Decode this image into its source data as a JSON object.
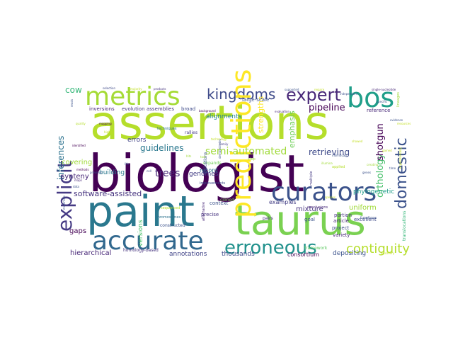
{
  "words": [
    {
      "text": "assertions",
      "color": "#b5de2b"
    },
    {
      "text": "biologist",
      "color": "#440154"
    },
    {
      "text": "paint",
      "color": "#2a788e"
    },
    {
      "text": "taurus",
      "color": "#7ad151"
    },
    {
      "text": "accurate",
      "color": "#31688e"
    },
    {
      "text": "metrics",
      "color": "#a5db36"
    },
    {
      "text": "curators",
      "color": "#3b528b"
    },
    {
      "text": "bos",
      "color": "#1f9e89"
    },
    {
      "text": "expert",
      "color": "#482878"
    },
    {
      "text": "kingdoms",
      "color": "#3e4a89"
    },
    {
      "text": "erroneous",
      "color": "#21918c"
    },
    {
      "text": "explicit",
      "color": "#443983"
    },
    {
      "text": "domestic",
      "color": "#3b528b"
    },
    {
      "text": "contiguity",
      "color": "#b5de2b"
    },
    {
      "text": "predictions",
      "color": "#fde725"
    },
    {
      "text": "semi-automated",
      "color": "#a0da39"
    },
    {
      "text": "software-assisted",
      "color": "#46337f"
    },
    {
      "text": "pipeline",
      "color": "#440154"
    },
    {
      "text": "orthology",
      "color": "#4ac16d"
    },
    {
      "text": "shotgun",
      "color": "#440154"
    },
    {
      "text": "retrieving",
      "color": "#3e4a89"
    },
    {
      "text": "guidelines",
      "color": "#2a788e"
    },
    {
      "text": "trees",
      "color": "#482878"
    },
    {
      "text": "genomes",
      "color": "#433e85"
    },
    {
      "text": "inferences",
      "color": "#2c728e"
    },
    {
      "text": "cow",
      "color": "#35b779"
    },
    {
      "text": "strengths",
      "color": "#fde725"
    },
    {
      "text": "emphasis",
      "color": "#6ece58"
    },
    {
      "text": "hierarchical",
      "color": "#482878"
    },
    {
      "text": "annotations",
      "color": "#404387"
    },
    {
      "text": "thousands",
      "color": "#3e4a89"
    },
    {
      "text": "consortium",
      "color": "#440154"
    },
    {
      "text": "depositing",
      "color": "#3b528b"
    },
    {
      "text": "uniform",
      "color": "#a0da39"
    },
    {
      "text": "mixture",
      "color": "#46337f"
    },
    {
      "text": "examples",
      "color": "#433e85"
    },
    {
      "text": "record",
      "color": "#2c728e"
    },
    {
      "text": "alignments",
      "color": "#25858e"
    },
    {
      "text": "large-scale",
      "color": "#3b528b"
    },
    {
      "text": "synteny",
      "color": "#482878"
    },
    {
      "text": "covering",
      "color": "#a0da39"
    },
    {
      "text": "building",
      "color": "#2a788e"
    },
    {
      "text": "errors",
      "color": "#414487"
    },
    {
      "text": "gaps",
      "color": "#440154"
    },
    {
      "text": "versions",
      "color": "#4ac16d"
    },
    {
      "text": "phylogenetic",
      "color": "#1f9e89"
    },
    {
      "text": "project",
      "color": "#3e4a89"
    },
    {
      "text": "variety",
      "color": "#482878"
    },
    {
      "text": "framework",
      "color": "#5ec962"
    },
    {
      "text": "inversions",
      "color": "#482878"
    },
    {
      "text": "evolution",
      "color": "#443983"
    },
    {
      "text": "assemblies",
      "color": "#46337f"
    },
    {
      "text": "broad",
      "color": "#3e4a89"
    },
    {
      "text": "article",
      "color": "#482878"
    },
    {
      "text": "excellent",
      "color": "#3e4a89"
    },
    {
      "text": "portion",
      "color": "#46337f"
    },
    {
      "text": "reference",
      "color": "#482878"
    },
    {
      "text": "goal",
      "color": "#3b528b"
    },
    {
      "text": "precise",
      "color": "#46337f"
    },
    {
      "text": "constructed",
      "color": "#3b528b"
    },
    {
      "text": "homology-based",
      "color": "#46337f"
    },
    {
      "text": "translocations",
      "color": "#35b779"
    },
    {
      "text": "conclusions",
      "color": "#482878"
    },
    {
      "text": "functions",
      "color": "#3b528b"
    },
    {
      "text": "alternative",
      "color": "#482878"
    },
    {
      "text": "cloned",
      "color": "#7ad151"
    },
    {
      "text": "improvements",
      "color": "#3e4a89"
    },
    {
      "text": "pairs",
      "color": "#472d7b"
    },
    {
      "text": "context",
      "color": "#3b528b"
    },
    {
      "text": "expands",
      "color": "#6ece58"
    },
    {
      "text": "lineages",
      "color": "#a0da39"
    },
    {
      "text": "techniques",
      "color": "#2c728e"
    },
    {
      "text": "rallies",
      "color": "#443983"
    },
    {
      "text": "chromosomes",
      "color": "#2c728e"
    },
    {
      "text": "sequenced",
      "color": "#b5de2b"
    },
    {
      "text": "limitations",
      "color": "#3b528b"
    },
    {
      "text": "applied",
      "color": "#b5de2b"
    },
    {
      "text": "multiple",
      "color": "#443983"
    },
    {
      "text": "selection",
      "color": "#3e4a89"
    },
    {
      "text": "majority",
      "color": "#c2df23"
    },
    {
      "text": "products",
      "color": "#46337f"
    },
    {
      "text": "supported",
      "color": "#3b528b"
    },
    {
      "text": "require",
      "color": "#c2df23"
    },
    {
      "text": "single-nucleotide",
      "color": "#482878"
    },
    {
      "text": "background",
      "color": "#440154"
    },
    {
      "text": "evaluation",
      "color": "#482878"
    },
    {
      "text": "independent",
      "color": "#3b528b"
    },
    {
      "text": "specific",
      "color": "#3b528b"
    },
    {
      "text": "family",
      "color": "#443983"
    },
    {
      "text": "technology",
      "color": "#c2df23"
    },
    {
      "text": "step",
      "color": "#a0da39"
    },
    {
      "text": "methods",
      "color": "#440154"
    },
    {
      "text": "maps",
      "color": "#482878"
    },
    {
      "text": "data",
      "color": "#3b528b"
    },
    {
      "text": "identified",
      "color": "#440154"
    },
    {
      "text": "previous",
      "color": "#3b528b"
    },
    {
      "text": "life",
      "color": "#3b528b"
    },
    {
      "text": "cell",
      "color": "#3e4a89"
    },
    {
      "text": "time",
      "color": "#3b528b"
    },
    {
      "text": "evidence",
      "color": "#3b528b"
    },
    {
      "text": "resources",
      "color": "#c2df23"
    },
    {
      "text": "illumina",
      "color": "#a0da39"
    },
    {
      "text": "discovery",
      "color": "#c2df23"
    },
    {
      "text": "mammals",
      "color": "#3b528b"
    },
    {
      "text": "reads",
      "color": "#3b528b"
    },
    {
      "text": "quality",
      "color": "#b5de2b"
    },
    {
      "text": "hits",
      "color": "#a0da39"
    },
    {
      "text": "tool",
      "color": "#a0da39"
    },
    {
      "text": "demonstrates",
      "color": "#3b528b"
    },
    {
      "text": "showed",
      "color": "#c2df23"
    },
    {
      "text": "gained",
      "color": "#c2df23"
    },
    {
      "text": "genes",
      "color": "#3b528b"
    },
    {
      "text": "experimentally",
      "color": "#c2df23"
    },
    {
      "text": "individuals",
      "color": "#3b528b"
    },
    {
      "text": "creating",
      "color": "#a0da39"
    },
    {
      "text": "species",
      "color": "#c2df23"
    },
    {
      "text": "mapping",
      "color": "#440154"
    },
    {
      "text": "highly",
      "color": "#c2df23"
    }
  ]
}
